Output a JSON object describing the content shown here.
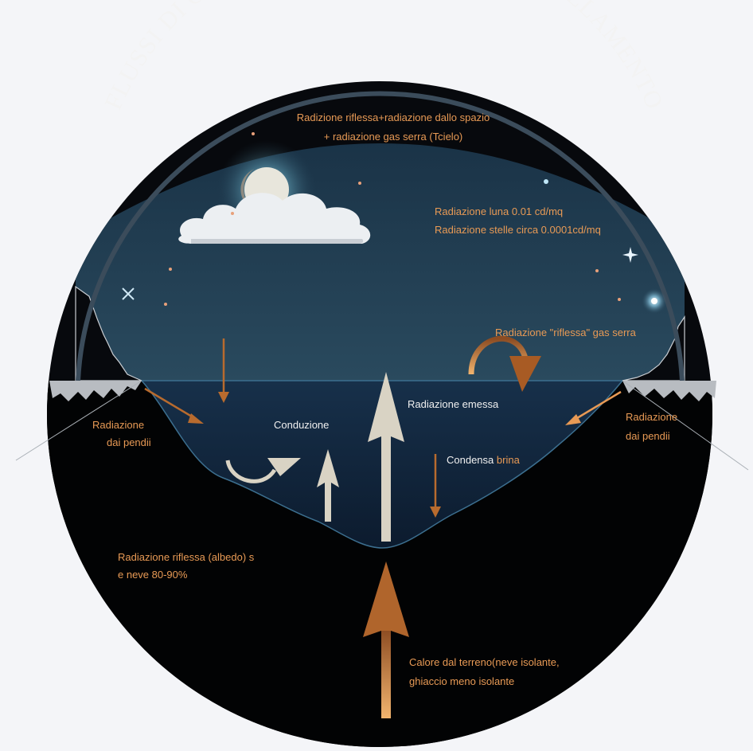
{
  "title": "FLUSSI DI CALORE NOTTURNO IN UN AVVALLAMENTO",
  "labels": {
    "sky_radiation_1": "Radizione riflessa+radiazione dallo spazio",
    "sky_radiation_2": "+ radiazione gas serra (Tcielo)",
    "moon_radiation": "Radiazione luna 0.01 cd/mq",
    "stars_radiation": "Radiazione stelle circa 0.0001cd/mq",
    "greenhouse_reflected": "Radiazione \"riflessa\" gas serra",
    "emitted_radiation": "Radiazione emessa",
    "conduction": "Conduzione",
    "frost_condensation_a": "Condensa",
    "frost_condensation_b": " brina",
    "slopes_left_1": "Radiazione",
    "slopes_left_2": "dai pendii",
    "slopes_right_1": "Radiazione",
    "slopes_right_2": "dai pendii",
    "albedo_1": "Radiazione riflessa (albedo) s",
    "albedo_2": "e neve 80-90%",
    "ground_heat_1": "Calore dal terreno(neve isolante,",
    "ground_heat_2": "ghiaccio meno isolante"
  },
  "colors": {
    "orange_label": "#e89a55",
    "white_label": "#f0f0f0",
    "sky": "#1f3a4e",
    "valley": "#13283e",
    "ground": "#020304",
    "arrow_light": "#d9d3c4",
    "arrow_orange": "#b86b2e"
  },
  "icons": [
    "moon-icon",
    "cloud-icon",
    "star-icon",
    "snow-ridge-icon"
  ]
}
